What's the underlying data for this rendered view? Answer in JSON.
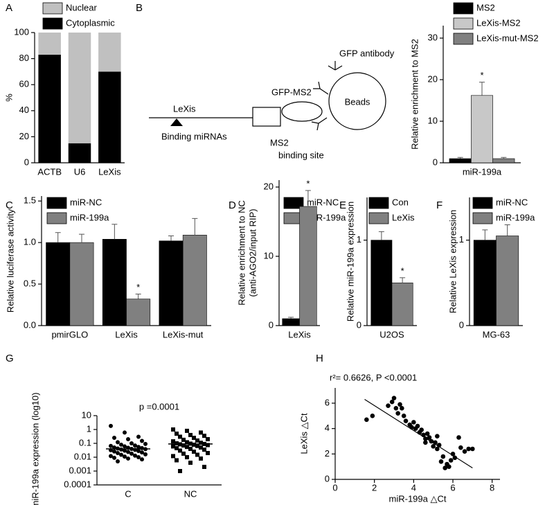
{
  "diagram": {
    "lexis": "LeXis",
    "binding_mirnas": "Binding miRNAs",
    "gfp_ms2": "GFP-MS2",
    "ms2": "MS2",
    "binding_site": "binding site",
    "gfp_antibody": "GFP antibody",
    "beads": "Beads"
  },
  "chart_data": [
    {
      "type": "stacked_bar",
      "panel": "A",
      "ylabel": "%",
      "categories": [
        "ACTB",
        "U6",
        "LeXis"
      ],
      "series": [
        {
          "name": "Cytoplasmic",
          "color": "#000000",
          "values": [
            83,
            15,
            70
          ]
        },
        {
          "name": "Nuclear",
          "color": "#c0c0c0",
          "values": [
            17,
            85,
            30
          ]
        }
      ],
      "ylim": [
        0,
        100
      ],
      "yticks": [
        0,
        20,
        40,
        60,
        80,
        100
      ]
    },
    {
      "type": "bar",
      "panel": "B",
      "ylabel": "Relative enrichment to MS2",
      "categories": [
        "miR-199a"
      ],
      "series": [
        {
          "name": "MS2",
          "color": "#000000",
          "values": [
            1.0
          ],
          "errors": [
            0.3
          ],
          "annotations": [
            null
          ]
        },
        {
          "name": "LeXis-MS2",
          "color": "#c8c8c8",
          "values": [
            16.2
          ],
          "errors": [
            3.2
          ],
          "annotations": [
            "*"
          ]
        },
        {
          "name": "LeXis-mut-MS2",
          "color": "#808080",
          "values": [
            1.0
          ],
          "errors": [
            0.3
          ],
          "annotations": [
            null
          ]
        }
      ],
      "ylim": [
        0,
        33
      ],
      "yticks": [
        0,
        10,
        20,
        30
      ]
    },
    {
      "type": "bar",
      "panel": "C",
      "ylabel": "Relative luciferase activity",
      "categories": [
        "pmirGLO",
        "LeXis",
        "LeXis-mut"
      ],
      "series": [
        {
          "name": "miR-NC",
          "color": "#000000",
          "values": [
            1.0,
            1.04,
            1.02
          ],
          "errors": [
            0.12,
            0.18,
            0.06
          ],
          "annotations": [
            null,
            null,
            null
          ]
        },
        {
          "name": "miR-199a",
          "color": "#808080",
          "values": [
            1.0,
            0.32,
            1.09
          ],
          "errors": [
            0.1,
            0.06,
            0.2
          ],
          "annotations": [
            null,
            "*",
            null
          ]
        }
      ],
      "ylim": [
        0,
        1.56
      ],
      "yticks": [
        {
          "value": 0,
          "label": "0.0"
        },
        0.5,
        {
          "value": 1,
          "label": "1.0"
        },
        1.5
      ]
    },
    {
      "type": "bar",
      "panel": "D",
      "ylabel": [
        "Relative enrichment to NC",
        "(anti-AGO2/input RIP)"
      ],
      "categories": [
        "LeXis"
      ],
      "series": [
        {
          "name": "miR-NC",
          "color": "#000000",
          "values": [
            1.0
          ],
          "errors": [
            0.2
          ],
          "annotations": [
            null
          ]
        },
        {
          "name": "miR-199a",
          "color": "#808080",
          "values": [
            17.2
          ],
          "errors": [
            2.3
          ],
          "annotations": [
            "*"
          ]
        }
      ],
      "ylim": [
        0,
        21
      ],
      "yticks": [
        0,
        10,
        20
      ]
    },
    {
      "type": "bar",
      "panel": "E",
      "ylabel": "Relative miR-199a expression",
      "categories": [
        "U2OS"
      ],
      "series": [
        {
          "name": "Con",
          "color": "#000000",
          "values": [
            1.0
          ],
          "errors": [
            0.1
          ],
          "annotations": [
            null
          ]
        },
        {
          "name": "LeXis",
          "color": "#808080",
          "values": [
            0.5
          ],
          "errors": [
            0.06
          ],
          "annotations": [
            "*"
          ]
        }
      ],
      "ylim": [
        0,
        1.5
      ],
      "yticks": [
        0,
        1
      ]
    },
    {
      "type": "bar",
      "panel": "F",
      "ylabel": "Relative LeXis expression",
      "categories": [
        "MG-63"
      ],
      "series": [
        {
          "name": "miR-NC",
          "color": "#000000",
          "values": [
            1.0
          ],
          "errors": [
            0.12
          ],
          "annotations": [
            null
          ]
        },
        {
          "name": "miR-199a",
          "color": "#808080",
          "values": [
            1.05
          ],
          "errors": [
            0.13
          ],
          "annotations": [
            null
          ]
        }
      ],
      "ylim": [
        0,
        1.5
      ],
      "yticks": [
        0,
        1
      ]
    },
    {
      "type": "dot_plot",
      "panel": "G",
      "ylabel": "miR-199a expression  (log10)",
      "annotation": "p =0.0001",
      "categories": [
        "C",
        "NC"
      ],
      "markers": [
        "circle",
        "square"
      ],
      "color": "#000000",
      "log_y": true,
      "values": [
        [
          1.8,
          0.6,
          0.3,
          0.25,
          0.2,
          0.15,
          0.12,
          0.1,
          0.09,
          0.08,
          0.07,
          0.065,
          0.06,
          0.055,
          0.05,
          0.048,
          0.045,
          0.042,
          0.04,
          0.038,
          0.036,
          0.034,
          0.032,
          0.03,
          0.028,
          0.026,
          0.024,
          0.022,
          0.02,
          0.018,
          0.016,
          0.015,
          0.013,
          0.012,
          0.011,
          0.01,
          0.009,
          0.008,
          0.007,
          0.005
        ],
        [
          1.0,
          0.8,
          0.6,
          0.5,
          0.4,
          0.35,
          0.3,
          0.25,
          0.2,
          0.18,
          0.16,
          0.14,
          0.12,
          0.11,
          0.1,
          0.095,
          0.09,
          0.085,
          0.08,
          0.075,
          0.07,
          0.065,
          0.06,
          0.055,
          0.05,
          0.045,
          0.04,
          0.035,
          0.03,
          0.025,
          0.02,
          0.018,
          0.015,
          0.012,
          0.01,
          0.008,
          0.006,
          0.004,
          0.002,
          0.001
        ]
      ],
      "medians": [
        0.04,
        0.09
      ],
      "ylim": [
        0.0001,
        10
      ],
      "yticks": [
        0.0001,
        0.001,
        0.01,
        0.1,
        1,
        10
      ]
    },
    {
      "type": "scatter",
      "panel": "H",
      "annotation": "r²= 0.6626, P <0.0001",
      "xlabel": "miR-199a △Ct",
      "ylabel": "LeXis △Ct",
      "color": "#000000",
      "x": [
        1.6,
        1.9,
        2.7,
        2.9,
        3.0,
        3.1,
        3.3,
        3.4,
        3.2,
        3.5,
        3.6,
        3.8,
        3.9,
        4.0,
        4.1,
        4.2,
        4.3,
        4.4,
        4.5,
        4.6,
        4.7,
        4.8,
        4.9,
        5.0,
        5.1,
        5.2,
        5.3,
        5.4,
        5.5,
        5.6,
        5.7,
        5.8,
        5.9,
        6.0,
        6.1,
        6.3,
        6.4,
        6.6,
        6.8,
        7.0,
        5.2,
        4.6
      ],
      "y": [
        4.7,
        5.0,
        5.8,
        6.1,
        6.4,
        5.6,
        5.9,
        5.6,
        5.2,
        5.0,
        4.6,
        4.3,
        4.1,
        4.5,
        4.0,
        4.2,
        3.7,
        3.9,
        3.5,
        3.2,
        3.6,
        3.3,
        3.0,
        2.6,
        2.9,
        2.4,
        2.7,
        1.4,
        1.8,
        0.9,
        1.2,
        1.0,
        1.5,
        2.0,
        1.7,
        3.3,
        2.5,
        2.2,
        2.4,
        2.4,
        3.4,
        2.9
      ],
      "fit": {
        "x": [
          1.5,
          7.0
        ],
        "y": [
          6.3,
          0.9
        ]
      },
      "xlim": [
        0,
        8.4
      ],
      "xticks": [
        0,
        2,
        4,
        6,
        8
      ],
      "ylim": [
        0,
        7.2
      ],
      "yticks": [
        0,
        2,
        4,
        6
      ]
    }
  ]
}
